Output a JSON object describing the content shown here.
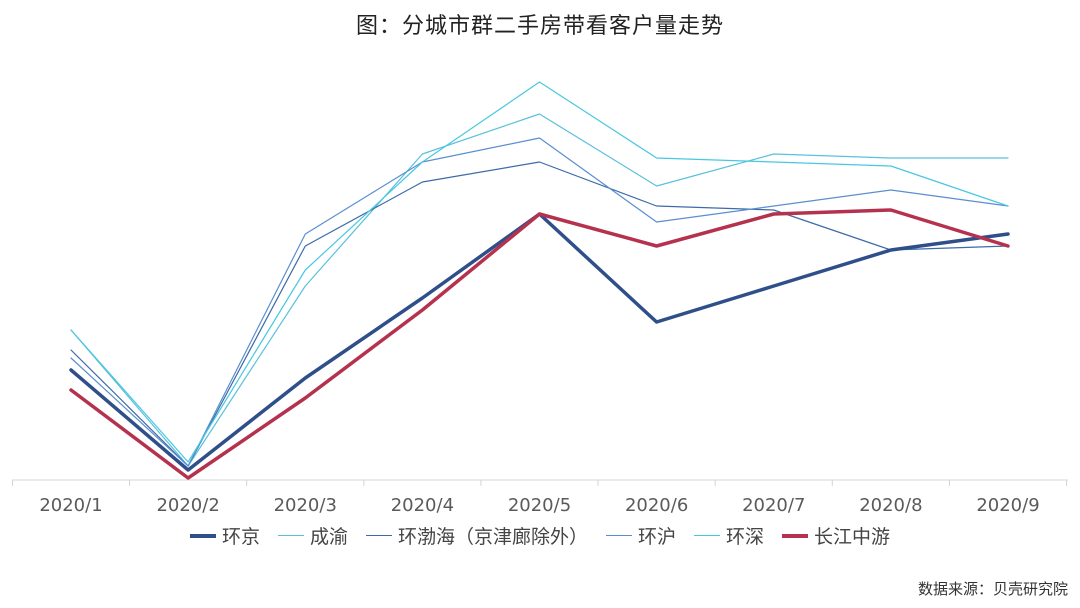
{
  "title": "图：分城市群二手房带看客户量走势",
  "source": "数据来源：贝壳研究院",
  "chart_data": {
    "type": "line",
    "categories": [
      "2020/1",
      "2020/2",
      "2020/3",
      "2020/4",
      "2020/5",
      "2020/6",
      "2020/7",
      "2020/8",
      "2020/9"
    ],
    "ylim": [
      0,
      100
    ],
    "grid": false,
    "legend_position": "bottom",
    "series": [
      {
        "name": "环京",
        "color": "#2f4f8a",
        "width": 3.5,
        "values": [
          27,
          2,
          25,
          45,
          66,
          39,
          48,
          57,
          61
        ]
      },
      {
        "name": "成渝",
        "color": "#5bc0dd",
        "width": 1.2,
        "values": [
          37,
          3,
          48,
          81,
          91,
          73,
          81,
          80,
          80
        ]
      },
      {
        "name": "环渤海（京津廊除外）",
        "color": "#3d6aa8",
        "width": 1.2,
        "values": [
          32,
          3,
          58,
          74,
          79,
          68,
          67,
          57,
          58
        ]
      },
      {
        "name": "环沪",
        "color": "#5a8ed0",
        "width": 1.2,
        "values": [
          30,
          3,
          61,
          79,
          85,
          64,
          68,
          72,
          68
        ]
      },
      {
        "name": "环深",
        "color": "#48c8e0",
        "width": 1.2,
        "values": [
          37,
          4,
          52,
          79,
          99,
          80,
          79,
          78,
          68
        ]
      },
      {
        "name": "长江中游",
        "color": "#b5324f",
        "width": 3.5,
        "values": [
          22,
          0,
          20,
          42,
          66,
          58,
          66,
          67,
          58
        ]
      }
    ]
  }
}
